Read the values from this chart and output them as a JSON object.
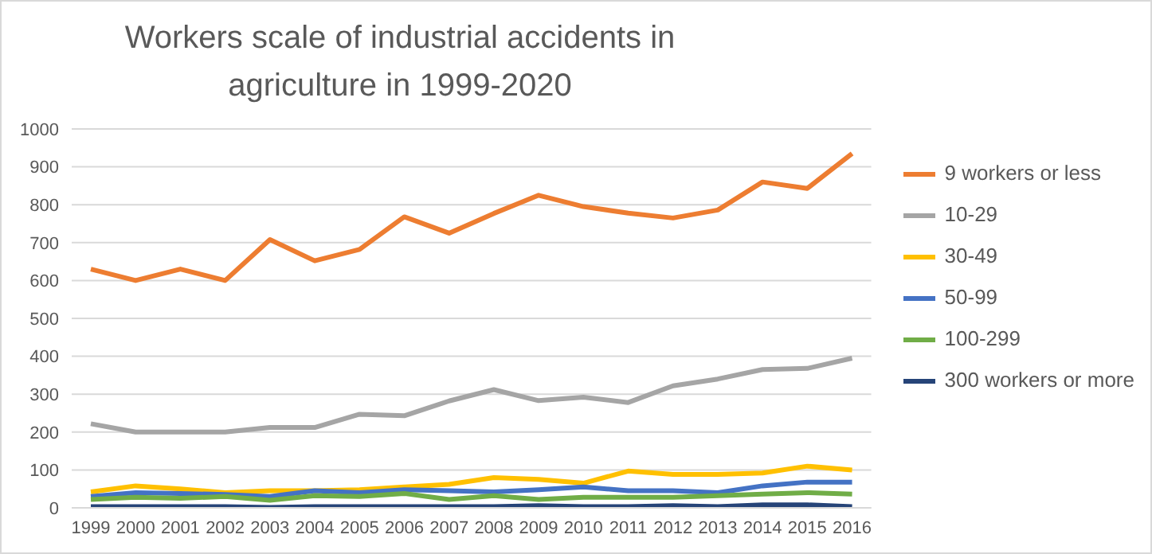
{
  "chart_data": {
    "type": "line",
    "title": "Workers scale of industrial accidents in agriculture in 1999-2020",
    "categories": [
      "1999",
      "2000",
      "2001",
      "2002",
      "2003",
      "2004",
      "2005",
      "2006",
      "2007",
      "2008",
      "2009",
      "2010",
      "2011",
      "2012",
      "2013",
      "2014",
      "2015",
      "2016"
    ],
    "series": [
      {
        "name": "9 workers or less",
        "color": "#ed7d31",
        "values": [
          630,
          600,
          630,
          600,
          708,
          652,
          682,
          768,
          725,
          777,
          825,
          795,
          778,
          765,
          786,
          860,
          843,
          935
        ]
      },
      {
        "name": "10-29",
        "color": "#a5a5a5",
        "values": [
          222,
          200,
          200,
          200,
          212,
          212,
          247,
          243,
          282,
          312,
          283,
          292,
          278,
          322,
          340,
          365,
          368,
          395
        ]
      },
      {
        "name": "30-49",
        "color": "#ffc000",
        "values": [
          42,
          58,
          50,
          40,
          45,
          45,
          48,
          55,
          62,
          80,
          75,
          65,
          97,
          88,
          88,
          92,
          110,
          100
        ]
      },
      {
        "name": "50-99",
        "color": "#4472c4",
        "values": [
          30,
          40,
          38,
          35,
          30,
          45,
          40,
          48,
          45,
          42,
          48,
          55,
          45,
          45,
          40,
          58,
          68,
          68
        ]
      },
      {
        "name": "100-299",
        "color": "#70ad47",
        "values": [
          22,
          28,
          25,
          30,
          20,
          32,
          30,
          38,
          22,
          32,
          22,
          28,
          28,
          28,
          32,
          36,
          40,
          36
        ]
      },
      {
        "name": "300 workers or more",
        "color": "#264478",
        "values": [
          3,
          3,
          3,
          3,
          1,
          3,
          3,
          3,
          3,
          3,
          6,
          3,
          3,
          6,
          3,
          8,
          8,
          3
        ]
      }
    ],
    "ylim": [
      0,
      1000
    ],
    "yticks": [
      0,
      100,
      200,
      300,
      400,
      500,
      600,
      700,
      800,
      900,
      1000
    ],
    "grid": "y",
    "legend": "right",
    "marker": "none",
    "line_style": "solid"
  }
}
